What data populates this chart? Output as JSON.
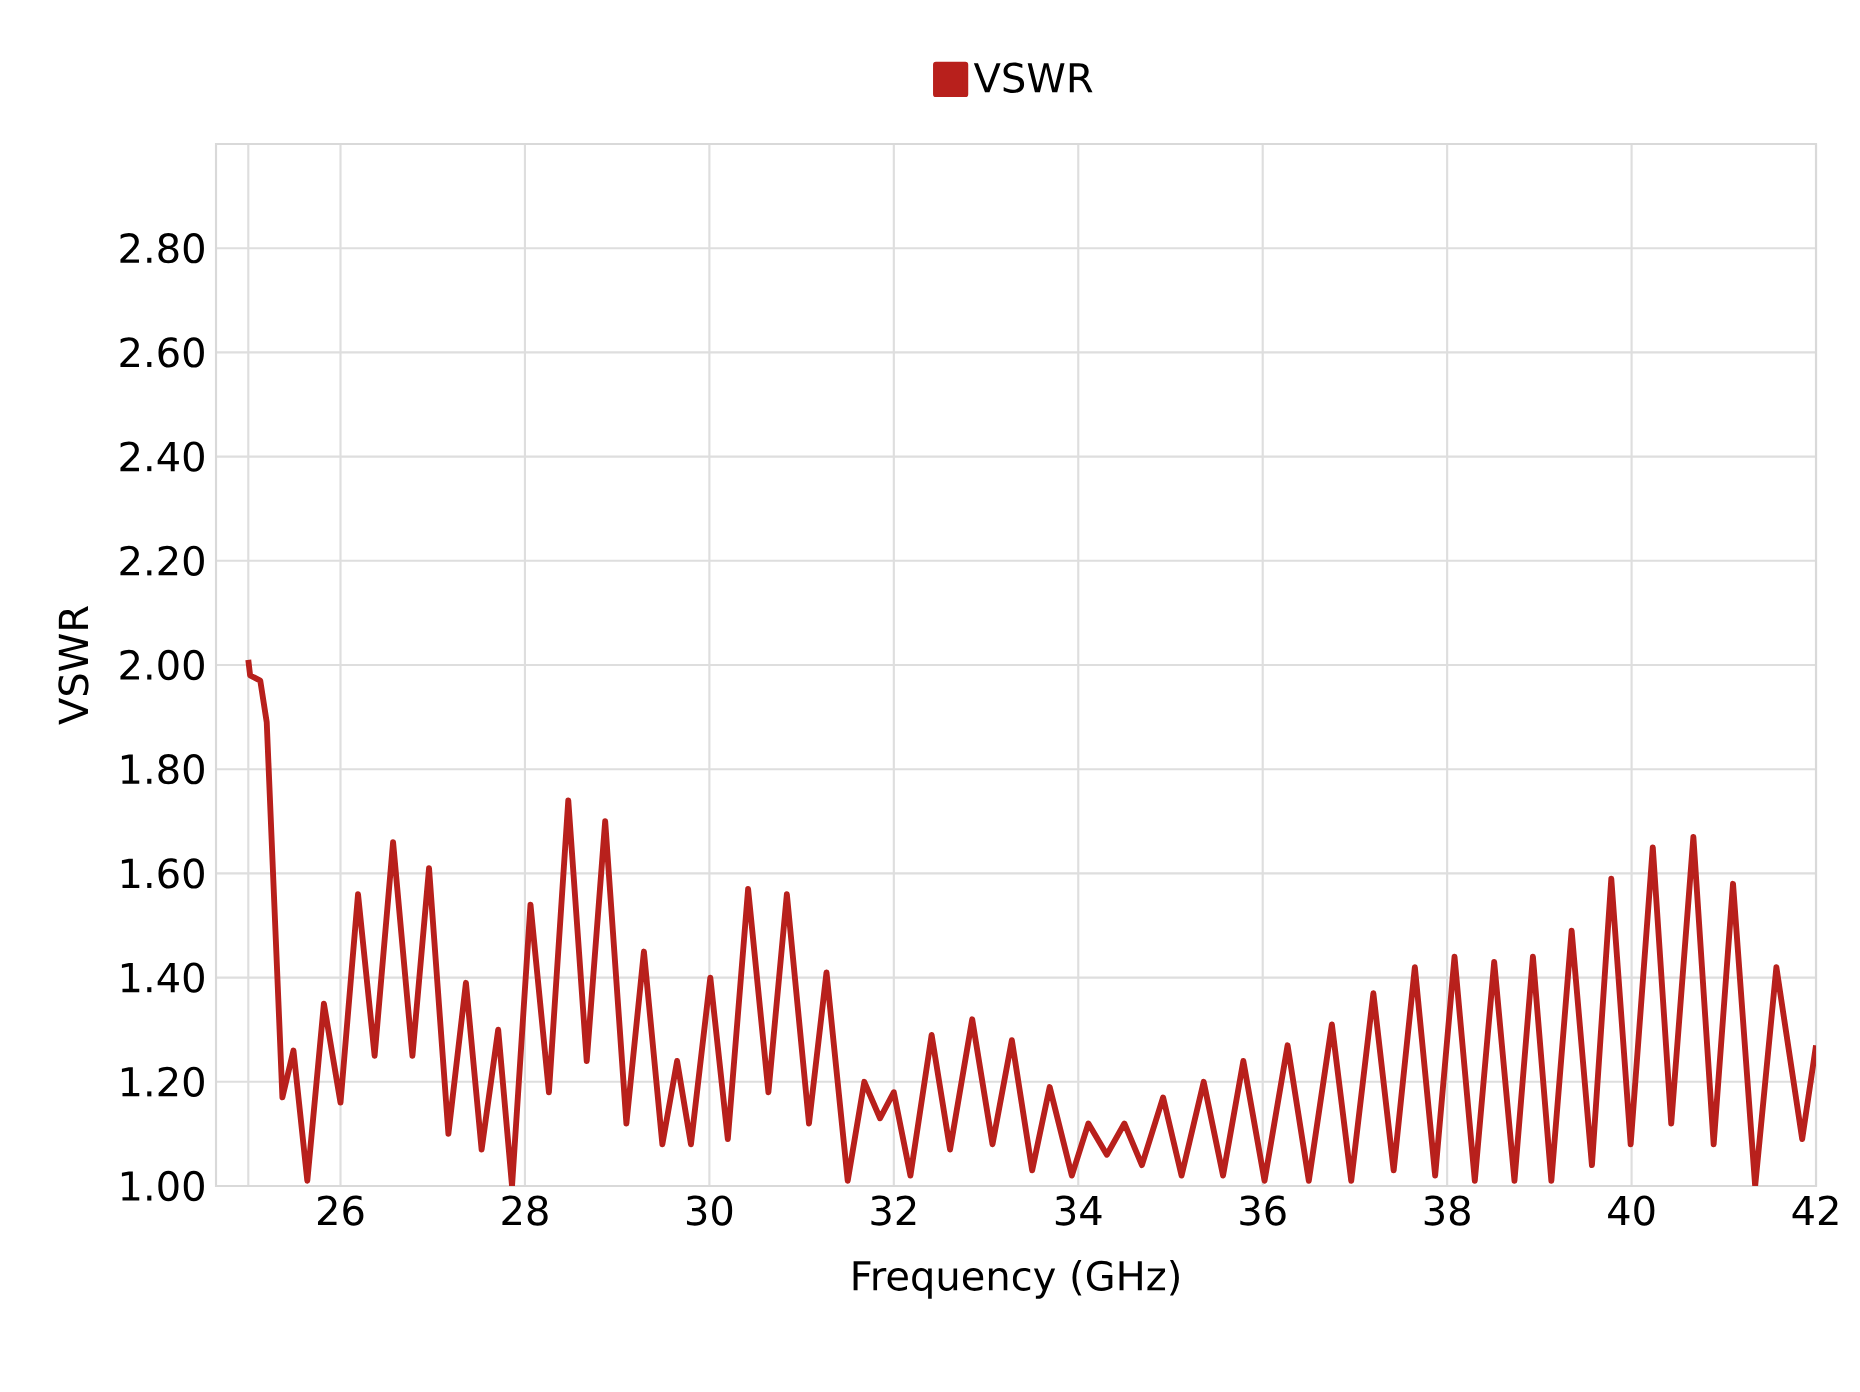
{
  "chart_data": {
    "type": "line",
    "xlabel": "Frequency (GHz)",
    "ylabel": "VSWR",
    "x": [
      25.0,
      25.02,
      25.13,
      25.2,
      25.37,
      25.49,
      25.64,
      25.82,
      26.0,
      26.19,
      26.37,
      26.57,
      26.78,
      26.96,
      27.17,
      27.36,
      27.53,
      27.71,
      27.86,
      28.06,
      28.26,
      28.47,
      28.67,
      28.87,
      29.1,
      29.29,
      29.49,
      29.65,
      29.8,
      30.01,
      30.2,
      30.42,
      30.64,
      30.84,
      31.08,
      31.27,
      31.5,
      31.68,
      31.85,
      32.0,
      32.18,
      32.41,
      32.61,
      32.85,
      33.07,
      33.28,
      33.5,
      33.69,
      33.93,
      34.11,
      34.31,
      34.5,
      34.69,
      34.92,
      35.12,
      35.36,
      35.57,
      35.79,
      36.02,
      36.27,
      36.5,
      36.75,
      36.96,
      37.2,
      37.42,
      37.65,
      37.87,
      38.08,
      38.3,
      38.51,
      38.73,
      38.93,
      39.13,
      39.35,
      39.57,
      39.78,
      39.99,
      40.23,
      40.43,
      40.67,
      40.89,
      41.1,
      41.34,
      41.57,
      41.85,
      42.0
    ],
    "series": [
      {
        "name": "VSWR",
        "color": "#b8201c",
        "values": [
          2.01,
          1.98,
          1.97,
          1.89,
          1.17,
          1.26,
          1.01,
          1.35,
          1.16,
          1.56,
          1.25,
          1.66,
          1.25,
          1.61,
          1.1,
          1.39,
          1.07,
          1.3,
          1.0,
          1.54,
          1.18,
          1.74,
          1.24,
          1.7,
          1.12,
          1.45,
          1.08,
          1.24,
          1.08,
          1.4,
          1.09,
          1.57,
          1.18,
          1.56,
          1.12,
          1.41,
          1.01,
          1.2,
          1.13,
          1.18,
          1.02,
          1.29,
          1.07,
          1.32,
          1.08,
          1.28,
          1.03,
          1.19,
          1.02,
          1.12,
          1.06,
          1.12,
          1.04,
          1.17,
          1.02,
          1.2,
          1.02,
          1.24,
          1.01,
          1.27,
          1.01,
          1.31,
          1.01,
          1.37,
          1.03,
          1.42,
          1.02,
          1.44,
          1.01,
          1.43,
          1.01,
          1.44,
          1.01,
          1.49,
          1.04,
          1.59,
          1.08,
          1.65,
          1.12,
          1.67,
          1.08,
          1.58,
          1.0,
          1.42,
          1.09,
          1.27
        ]
      }
    ],
    "xlim": [
      24.65,
      42
    ],
    "ylim": [
      1,
      3
    ],
    "xticks": [
      {
        "value": 25,
        "label": null
      },
      26,
      28,
      30,
      32,
      34,
      36,
      38,
      40,
      42
    ],
    "yticks": [
      {
        "value": 1,
        "label": "1.00"
      },
      {
        "value": 1.2,
        "label": "1.20"
      },
      {
        "value": 1.4,
        "label": "1.40"
      },
      {
        "value": 1.6,
        "label": "1.60"
      },
      {
        "value": 1.8,
        "label": "1.80"
      },
      {
        "value": 2,
        "label": "2.00"
      },
      {
        "value": 2.2,
        "label": "2.20"
      },
      {
        "value": 2.4,
        "label": "2.40"
      },
      {
        "value": 2.6,
        "label": "2.60"
      },
      {
        "value": 2.8,
        "label": "2.80"
      }
    ],
    "grid": true,
    "legend": "top"
  }
}
